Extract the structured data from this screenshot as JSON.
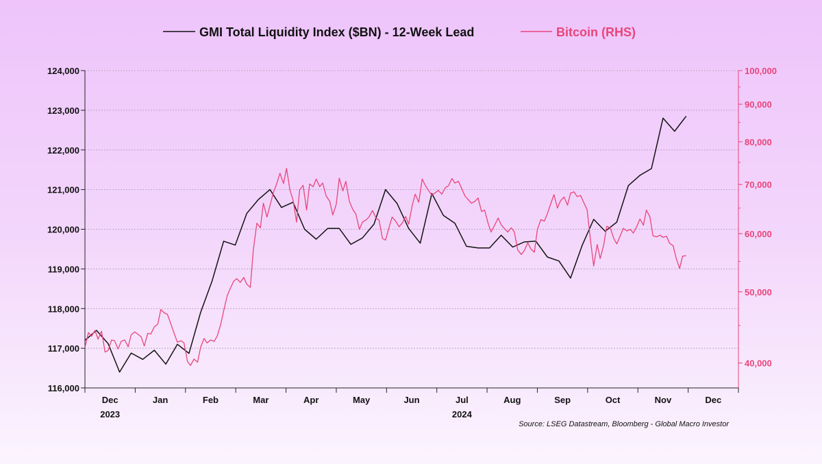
{
  "chart_data": {
    "type": "line",
    "legend": {
      "placement": "top-center",
      "entries": [
        {
          "label": "GMI Total Liquidity Index ($BN) - 12-Week Lead",
          "color": "#111111"
        },
        {
          "label": "Bitcoin (RHS)",
          "color": "#e8457a"
        }
      ]
    },
    "x_ticks": [
      "Dec",
      "Jan",
      "Feb",
      "Mar",
      "Apr",
      "May",
      "Jun",
      "Jul",
      "Aug",
      "Sep",
      "Oct",
      "Nov",
      "Dec"
    ],
    "x_year_labels": [
      {
        "label": "2023",
        "at_month": 0
      },
      {
        "label": "2024",
        "at_month": 7
      }
    ],
    "y_left": {
      "ticks": [
        "116,000",
        "117,000",
        "118,000",
        "119,000",
        "120,000",
        "121,000",
        "122,000",
        "123,000",
        "124,000"
      ],
      "range": [
        116000,
        124000
      ]
    },
    "y_right": {
      "scale": "log",
      "ticks": [
        "40,000",
        "50,000",
        "60,000",
        "70,000",
        "80,000",
        "90,000",
        "100,000"
      ],
      "range": [
        37000,
        100000
      ]
    },
    "grid": true,
    "series": [
      {
        "name": "GMI Total Liquidity Index ($BN) - 12-Week Lead",
        "axis": "left",
        "color": "#111111",
        "x_unit": "months since 2023-11-15",
        "points": [
          [
            0.0,
            117200
          ],
          [
            0.23,
            117450
          ],
          [
            0.46,
            117120
          ],
          [
            0.69,
            116400
          ],
          [
            0.92,
            116880
          ],
          [
            1.15,
            116720
          ],
          [
            1.38,
            116950
          ],
          [
            1.61,
            116600
          ],
          [
            1.84,
            117100
          ],
          [
            2.07,
            116870
          ],
          [
            2.3,
            117900
          ],
          [
            2.53,
            118700
          ],
          [
            2.76,
            119700
          ],
          [
            2.99,
            119600
          ],
          [
            3.22,
            120400
          ],
          [
            3.45,
            120750
          ],
          [
            3.68,
            121000
          ],
          [
            3.91,
            120550
          ],
          [
            4.14,
            120680
          ],
          [
            4.37,
            120000
          ],
          [
            4.6,
            119750
          ],
          [
            4.83,
            120020
          ],
          [
            5.06,
            120020
          ],
          [
            5.29,
            119620
          ],
          [
            5.52,
            119780
          ],
          [
            5.75,
            120130
          ],
          [
            5.98,
            121000
          ],
          [
            6.21,
            120650
          ],
          [
            6.44,
            120020
          ],
          [
            6.67,
            119650
          ],
          [
            6.9,
            120900
          ],
          [
            7.13,
            120350
          ],
          [
            7.36,
            120150
          ],
          [
            7.59,
            119570
          ],
          [
            7.82,
            119530
          ],
          [
            8.05,
            119530
          ],
          [
            8.28,
            119850
          ],
          [
            8.51,
            119550
          ],
          [
            8.74,
            119680
          ],
          [
            8.97,
            119700
          ],
          [
            9.2,
            119300
          ],
          [
            9.43,
            119200
          ],
          [
            9.66,
            118770
          ],
          [
            9.89,
            119590
          ],
          [
            10.12,
            120250
          ],
          [
            10.35,
            119950
          ],
          [
            10.58,
            120180
          ],
          [
            10.81,
            121100
          ],
          [
            11.04,
            121360
          ],
          [
            11.27,
            121530
          ],
          [
            11.5,
            122800
          ],
          [
            11.73,
            122470
          ],
          [
            11.96,
            122850
          ]
        ]
      },
      {
        "name": "Bitcoin (RHS)",
        "axis": "right",
        "color": "#e8457a",
        "x_unit": "months since 2023-11-15",
        "points": [
          [
            0.0,
            42000
          ],
          [
            0.07,
            44000
          ],
          [
            0.13,
            43500
          ],
          [
            0.2,
            44300
          ],
          [
            0.26,
            43100
          ],
          [
            0.33,
            44200
          ],
          [
            0.4,
            41400
          ],
          [
            0.46,
            41600
          ],
          [
            0.53,
            43000
          ],
          [
            0.59,
            42900
          ],
          [
            0.66,
            41800
          ],
          [
            0.72,
            42800
          ],
          [
            0.79,
            43000
          ],
          [
            0.86,
            42100
          ],
          [
            0.92,
            43700
          ],
          [
            0.99,
            44100
          ],
          [
            1.05,
            43800
          ],
          [
            1.12,
            43400
          ],
          [
            1.18,
            42200
          ],
          [
            1.25,
            43900
          ],
          [
            1.31,
            43800
          ],
          [
            1.38,
            44800
          ],
          [
            1.45,
            45200
          ],
          [
            1.51,
            47300
          ],
          [
            1.58,
            46800
          ],
          [
            1.64,
            46600
          ],
          [
            1.71,
            45200
          ],
          [
            1.78,
            43800
          ],
          [
            1.84,
            42700
          ],
          [
            1.91,
            42900
          ],
          [
            1.97,
            42600
          ],
          [
            2.04,
            40200
          ],
          [
            2.1,
            39700
          ],
          [
            2.17,
            40500
          ],
          [
            2.24,
            40100
          ],
          [
            2.3,
            42000
          ],
          [
            2.37,
            43200
          ],
          [
            2.43,
            42600
          ],
          [
            2.5,
            43000
          ],
          [
            2.57,
            42800
          ],
          [
            2.63,
            43500
          ],
          [
            2.7,
            45100
          ],
          [
            2.76,
            47100
          ],
          [
            2.83,
            49400
          ],
          [
            2.89,
            50500
          ],
          [
            2.96,
            51700
          ],
          [
            3.02,
            52100
          ],
          [
            3.09,
            51500
          ],
          [
            3.16,
            52300
          ],
          [
            3.22,
            51200
          ],
          [
            3.29,
            50700
          ],
          [
            3.35,
            57000
          ],
          [
            3.42,
            62000
          ],
          [
            3.49,
            61100
          ],
          [
            3.55,
            66000
          ],
          [
            3.62,
            63200
          ],
          [
            3.68,
            65500
          ],
          [
            3.75,
            68300
          ],
          [
            3.81,
            70000
          ],
          [
            3.88,
            72500
          ],
          [
            3.95,
            70200
          ],
          [
            4.01,
            73600
          ],
          [
            4.08,
            68700
          ],
          [
            4.14,
            66700
          ],
          [
            4.21,
            62200
          ],
          [
            4.27,
            68800
          ],
          [
            4.34,
            69800
          ],
          [
            4.41,
            64600
          ],
          [
            4.47,
            70100
          ],
          [
            4.54,
            69500
          ],
          [
            4.6,
            71200
          ],
          [
            4.67,
            69500
          ],
          [
            4.73,
            70300
          ],
          [
            4.8,
            67500
          ],
          [
            4.87,
            66400
          ],
          [
            4.93,
            63600
          ],
          [
            5.0,
            65800
          ],
          [
            5.06,
            71400
          ],
          [
            5.13,
            68600
          ],
          [
            5.19,
            70700
          ],
          [
            5.26,
            66400
          ],
          [
            5.33,
            64700
          ],
          [
            5.39,
            63800
          ],
          [
            5.46,
            60800
          ],
          [
            5.52,
            62200
          ],
          [
            5.59,
            62600
          ],
          [
            5.65,
            63200
          ],
          [
            5.72,
            64500
          ],
          [
            5.79,
            63000
          ],
          [
            5.85,
            62600
          ],
          [
            5.92,
            59100
          ],
          [
            5.98,
            58800
          ],
          [
            6.05,
            61200
          ],
          [
            6.11,
            63200
          ],
          [
            6.18,
            62400
          ],
          [
            6.25,
            61300
          ],
          [
            6.31,
            62000
          ],
          [
            6.38,
            63300
          ],
          [
            6.44,
            61800
          ],
          [
            6.51,
            65500
          ],
          [
            6.57,
            67900
          ],
          [
            6.64,
            66200
          ],
          [
            6.71,
            71200
          ],
          [
            6.77,
            69800
          ],
          [
            6.84,
            68600
          ],
          [
            6.9,
            67700
          ],
          [
            6.97,
            68200
          ],
          [
            7.03,
            68700
          ],
          [
            7.1,
            67900
          ],
          [
            7.17,
            69300
          ],
          [
            7.23,
            69700
          ],
          [
            7.3,
            71300
          ],
          [
            7.36,
            70300
          ],
          [
            7.43,
            70700
          ],
          [
            7.49,
            69200
          ],
          [
            7.56,
            67500
          ],
          [
            7.62,
            66800
          ],
          [
            7.69,
            66000
          ],
          [
            7.76,
            66400
          ],
          [
            7.82,
            67100
          ],
          [
            7.89,
            64300
          ],
          [
            7.95,
            64600
          ],
          [
            8.02,
            62000
          ],
          [
            8.08,
            60300
          ],
          [
            8.15,
            61600
          ],
          [
            8.22,
            63000
          ],
          [
            8.28,
            61700
          ],
          [
            8.35,
            60900
          ],
          [
            8.41,
            60300
          ],
          [
            8.48,
            61100
          ],
          [
            8.54,
            60400
          ],
          [
            8.61,
            57000
          ],
          [
            8.68,
            56200
          ],
          [
            8.74,
            56900
          ],
          [
            8.81,
            58300
          ],
          [
            8.87,
            57200
          ],
          [
            8.94,
            56600
          ],
          [
            9.0,
            60800
          ],
          [
            9.07,
            62700
          ],
          [
            9.14,
            62400
          ],
          [
            9.2,
            63900
          ],
          [
            9.27,
            66000
          ],
          [
            9.33,
            67800
          ],
          [
            9.4,
            65000
          ],
          [
            9.46,
            66500
          ],
          [
            9.53,
            67300
          ],
          [
            9.6,
            65600
          ],
          [
            9.66,
            68100
          ],
          [
            9.73,
            68400
          ],
          [
            9.79,
            67400
          ],
          [
            9.86,
            67600
          ],
          [
            9.92,
            66200
          ],
          [
            9.99,
            64700
          ],
          [
            10.06,
            58600
          ],
          [
            10.12,
            54200
          ],
          [
            10.19,
            58000
          ],
          [
            10.25,
            55500
          ],
          [
            10.32,
            57900
          ],
          [
            10.38,
            61400
          ],
          [
            10.45,
            61100
          ],
          [
            10.52,
            59100
          ],
          [
            10.58,
            58100
          ],
          [
            10.65,
            59600
          ],
          [
            10.71,
            61000
          ],
          [
            10.78,
            60500
          ],
          [
            10.85,
            60800
          ],
          [
            10.91,
            60100
          ],
          [
            10.98,
            61400
          ],
          [
            11.04,
            62800
          ],
          [
            11.11,
            61600
          ],
          [
            11.17,
            64600
          ],
          [
            11.24,
            63200
          ],
          [
            11.3,
            59600
          ],
          [
            11.37,
            59400
          ],
          [
            11.44,
            59700
          ],
          [
            11.5,
            59300
          ],
          [
            11.57,
            59500
          ],
          [
            11.63,
            58200
          ],
          [
            11.7,
            57800
          ],
          [
            11.76,
            55600
          ],
          [
            11.83,
            53800
          ],
          [
            11.89,
            55900
          ],
          [
            11.96,
            56000
          ]
        ]
      }
    ],
    "source": "Source: LSEG Datastream, Bloomberg - Global Macro Investor"
  }
}
